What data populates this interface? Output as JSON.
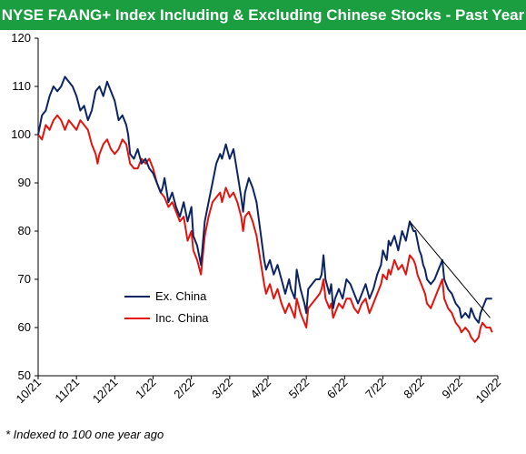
{
  "title": "NYSE FAANG+ Index Including & Excluding Chinese Stocks - Past Year",
  "footnote": "* Indexed to 100 one year ago",
  "chart_data": {
    "type": "line",
    "ylim": [
      50,
      120
    ],
    "yticks": [
      50,
      60,
      70,
      80,
      90,
      100,
      110,
      120
    ],
    "x_tick_labels": [
      "10/21",
      "11/21",
      "12/21",
      "1/22",
      "2/22",
      "3/22",
      "4/22",
      "5/22",
      "6/22",
      "7/22",
      "8/22",
      "9/22",
      "10/22"
    ],
    "grid": false,
    "legend_position": "lower-left",
    "series": [
      {
        "name": "Ex. China",
        "color": "#0d2463",
        "points": [
          [
            0,
            100
          ],
          [
            0.1,
            104
          ],
          [
            0.2,
            105
          ],
          [
            0.3,
            108
          ],
          [
            0.4,
            110
          ],
          [
            0.5,
            109
          ],
          [
            0.6,
            110
          ],
          [
            0.7,
            112
          ],
          [
            0.8,
            111
          ],
          [
            0.9,
            110
          ],
          [
            1.0,
            108
          ],
          [
            1.1,
            105
          ],
          [
            1.2,
            106
          ],
          [
            1.3,
            103
          ],
          [
            1.4,
            105
          ],
          [
            1.5,
            109
          ],
          [
            1.6,
            110
          ],
          [
            1.7,
            108
          ],
          [
            1.8,
            111
          ],
          [
            1.9,
            109
          ],
          [
            2.0,
            107
          ],
          [
            2.1,
            103
          ],
          [
            2.2,
            104
          ],
          [
            2.3,
            102
          ],
          [
            2.35,
            100
          ],
          [
            2.4,
            96
          ],
          [
            2.5,
            95
          ],
          [
            2.6,
            97
          ],
          [
            2.7,
            94
          ],
          [
            2.8,
            95
          ],
          [
            2.9,
            93
          ],
          [
            3.0,
            92
          ],
          [
            3.1,
            90
          ],
          [
            3.2,
            88
          ],
          [
            3.25,
            89
          ],
          [
            3.3,
            91
          ],
          [
            3.4,
            86
          ],
          [
            3.5,
            88
          ],
          [
            3.6,
            85
          ],
          [
            3.7,
            83
          ],
          [
            3.8,
            86
          ],
          [
            3.9,
            82
          ],
          [
            4.0,
            85
          ],
          [
            4.05,
            79
          ],
          [
            4.15,
            77
          ],
          [
            4.25,
            73
          ],
          [
            4.35,
            82
          ],
          [
            4.45,
            86
          ],
          [
            4.55,
            90
          ],
          [
            4.65,
            94
          ],
          [
            4.75,
            96
          ],
          [
            4.8,
            95
          ],
          [
            4.9,
            98
          ],
          [
            5.0,
            95
          ],
          [
            5.1,
            97
          ],
          [
            5.2,
            92
          ],
          [
            5.3,
            87
          ],
          [
            5.35,
            84
          ],
          [
            5.4,
            88
          ],
          [
            5.5,
            91
          ],
          [
            5.6,
            89
          ],
          [
            5.7,
            86
          ],
          [
            5.8,
            80
          ],
          [
            5.9,
            74
          ],
          [
            5.95,
            72
          ],
          [
            6.05,
            74
          ],
          [
            6.15,
            71
          ],
          [
            6.25,
            73
          ],
          [
            6.35,
            70
          ],
          [
            6.45,
            67
          ],
          [
            6.55,
            70
          ],
          [
            6.6,
            68
          ],
          [
            6.7,
            66
          ],
          [
            6.75,
            72
          ],
          [
            6.85,
            68
          ],
          [
            6.95,
            65
          ],
          [
            7.0,
            63
          ],
          [
            7.05,
            68
          ],
          [
            7.15,
            69
          ],
          [
            7.25,
            70
          ],
          [
            7.35,
            70
          ],
          [
            7.4,
            71
          ],
          [
            7.45,
            75
          ],
          [
            7.5,
            70
          ],
          [
            7.6,
            67
          ],
          [
            7.65,
            69
          ],
          [
            7.7,
            64
          ],
          [
            7.75,
            66
          ],
          [
            7.85,
            68
          ],
          [
            7.95,
            66
          ],
          [
            8.05,
            70
          ],
          [
            8.15,
            69
          ],
          [
            8.25,
            67
          ],
          [
            8.35,
            65
          ],
          [
            8.45,
            67
          ],
          [
            8.55,
            69
          ],
          [
            8.65,
            66
          ],
          [
            8.75,
            68
          ],
          [
            8.85,
            71
          ],
          [
            8.95,
            73
          ],
          [
            9.0,
            76
          ],
          [
            9.1,
            74
          ],
          [
            9.15,
            78
          ],
          [
            9.2,
            77
          ],
          [
            9.3,
            79
          ],
          [
            9.4,
            76
          ],
          [
            9.5,
            80
          ],
          [
            9.6,
            78
          ],
          [
            9.7,
            82
          ],
          [
            9.8,
            80
          ],
          [
            9.85,
            80
          ],
          [
            9.9,
            78
          ],
          [
            9.95,
            76
          ],
          [
            10.0,
            75
          ],
          [
            10.05,
            73
          ],
          [
            10.1,
            72
          ],
          [
            10.15,
            70
          ],
          [
            10.25,
            69
          ],
          [
            10.35,
            70
          ],
          [
            10.45,
            72
          ],
          [
            10.5,
            73
          ],
          [
            10.55,
            74
          ],
          [
            10.6,
            70
          ],
          [
            10.7,
            68
          ],
          [
            10.8,
            67
          ],
          [
            10.9,
            65
          ],
          [
            11.0,
            64
          ],
          [
            11.05,
            62
          ],
          [
            11.15,
            63
          ],
          [
            11.25,
            62
          ],
          [
            11.3,
            64
          ],
          [
            11.4,
            62
          ],
          [
            11.5,
            61
          ],
          [
            11.55,
            63
          ],
          [
            11.6,
            64
          ],
          [
            11.7,
            66
          ],
          [
            11.8,
            66
          ],
          [
            11.85,
            66
          ]
        ]
      },
      {
        "name": "Inc. China",
        "color": "#e3140d",
        "points": [
          [
            0,
            100
          ],
          [
            0.1,
            99
          ],
          [
            0.2,
            102
          ],
          [
            0.3,
            101
          ],
          [
            0.4,
            103
          ],
          [
            0.5,
            104
          ],
          [
            0.6,
            103
          ],
          [
            0.7,
            101
          ],
          [
            0.8,
            103
          ],
          [
            0.9,
            102
          ],
          [
            1.0,
            101
          ],
          [
            1.1,
            103
          ],
          [
            1.2,
            102
          ],
          [
            1.3,
            101
          ],
          [
            1.4,
            98
          ],
          [
            1.5,
            96
          ],
          [
            1.55,
            94
          ],
          [
            1.6,
            96
          ],
          [
            1.7,
            98
          ],
          [
            1.8,
            99
          ],
          [
            1.9,
            97
          ],
          [
            2.0,
            96
          ],
          [
            2.1,
            97
          ],
          [
            2.2,
            99
          ],
          [
            2.3,
            98
          ],
          [
            2.35,
            96
          ],
          [
            2.4,
            94
          ],
          [
            2.5,
            93
          ],
          [
            2.6,
            93
          ],
          [
            2.7,
            95
          ],
          [
            2.8,
            94
          ],
          [
            2.9,
            95
          ],
          [
            3.0,
            93
          ],
          [
            3.1,
            90
          ],
          [
            3.2,
            88
          ],
          [
            3.3,
            87
          ],
          [
            3.4,
            85
          ],
          [
            3.5,
            86
          ],
          [
            3.6,
            84
          ],
          [
            3.7,
            82
          ],
          [
            3.8,
            83
          ],
          [
            3.9,
            78
          ],
          [
            4.0,
            80
          ],
          [
            4.05,
            76
          ],
          [
            4.15,
            74
          ],
          [
            4.25,
            71
          ],
          [
            4.35,
            79
          ],
          [
            4.45,
            83
          ],
          [
            4.55,
            86
          ],
          [
            4.65,
            87
          ],
          [
            4.75,
            88
          ],
          [
            4.8,
            86
          ],
          [
            4.9,
            89
          ],
          [
            5.0,
            87
          ],
          [
            5.1,
            88
          ],
          [
            5.2,
            86
          ],
          [
            5.3,
            83
          ],
          [
            5.35,
            80
          ],
          [
            5.4,
            83
          ],
          [
            5.5,
            84
          ],
          [
            5.6,
            82
          ],
          [
            5.7,
            79
          ],
          [
            5.8,
            74
          ],
          [
            5.9,
            69
          ],
          [
            5.95,
            67
          ],
          [
            6.05,
            69
          ],
          [
            6.15,
            66
          ],
          [
            6.25,
            68
          ],
          [
            6.35,
            65
          ],
          [
            6.45,
            63
          ],
          [
            6.55,
            65
          ],
          [
            6.6,
            64
          ],
          [
            6.7,
            62
          ],
          [
            6.75,
            66
          ],
          [
            6.85,
            63
          ],
          [
            6.95,
            61
          ],
          [
            7.0,
            60
          ],
          [
            7.05,
            64
          ],
          [
            7.15,
            65
          ],
          [
            7.25,
            66
          ],
          [
            7.35,
            67
          ],
          [
            7.4,
            68
          ],
          [
            7.45,
            70
          ],
          [
            7.5,
            66
          ],
          [
            7.6,
            64
          ],
          [
            7.65,
            65
          ],
          [
            7.7,
            62
          ],
          [
            7.75,
            63
          ],
          [
            7.85,
            65
          ],
          [
            7.95,
            64
          ],
          [
            8.05,
            66
          ],
          [
            8.15,
            66
          ],
          [
            8.25,
            64
          ],
          [
            8.35,
            63
          ],
          [
            8.45,
            65
          ],
          [
            8.55,
            66
          ],
          [
            8.65,
            63
          ],
          [
            8.75,
            65
          ],
          [
            8.85,
            67
          ],
          [
            8.95,
            69
          ],
          [
            9.0,
            71
          ],
          [
            9.1,
            70
          ],
          [
            9.15,
            72
          ],
          [
            9.2,
            71
          ],
          [
            9.3,
            74
          ],
          [
            9.4,
            72
          ],
          [
            9.5,
            73
          ],
          [
            9.6,
            71
          ],
          [
            9.7,
            75
          ],
          [
            9.8,
            74
          ],
          [
            9.85,
            73
          ],
          [
            9.9,
            71
          ],
          [
            9.95,
            70
          ],
          [
            10.0,
            69
          ],
          [
            10.05,
            68
          ],
          [
            10.1,
            67
          ],
          [
            10.15,
            65
          ],
          [
            10.25,
            64
          ],
          [
            10.35,
            66
          ],
          [
            10.45,
            68
          ],
          [
            10.5,
            69
          ],
          [
            10.55,
            70
          ],
          [
            10.6,
            66
          ],
          [
            10.7,
            64
          ],
          [
            10.8,
            63
          ],
          [
            10.9,
            61
          ],
          [
            11.0,
            60
          ],
          [
            11.05,
            59
          ],
          [
            11.15,
            60
          ],
          [
            11.25,
            59
          ],
          [
            11.3,
            58
          ],
          [
            11.4,
            57
          ],
          [
            11.5,
            58
          ],
          [
            11.55,
            60
          ],
          [
            11.6,
            61
          ],
          [
            11.7,
            60
          ],
          [
            11.8,
            60
          ],
          [
            11.85,
            59
          ]
        ]
      }
    ],
    "trendline": {
      "color": "#000000",
      "from": [
        9.7,
        82
      ],
      "to": [
        11.8,
        62
      ]
    }
  }
}
